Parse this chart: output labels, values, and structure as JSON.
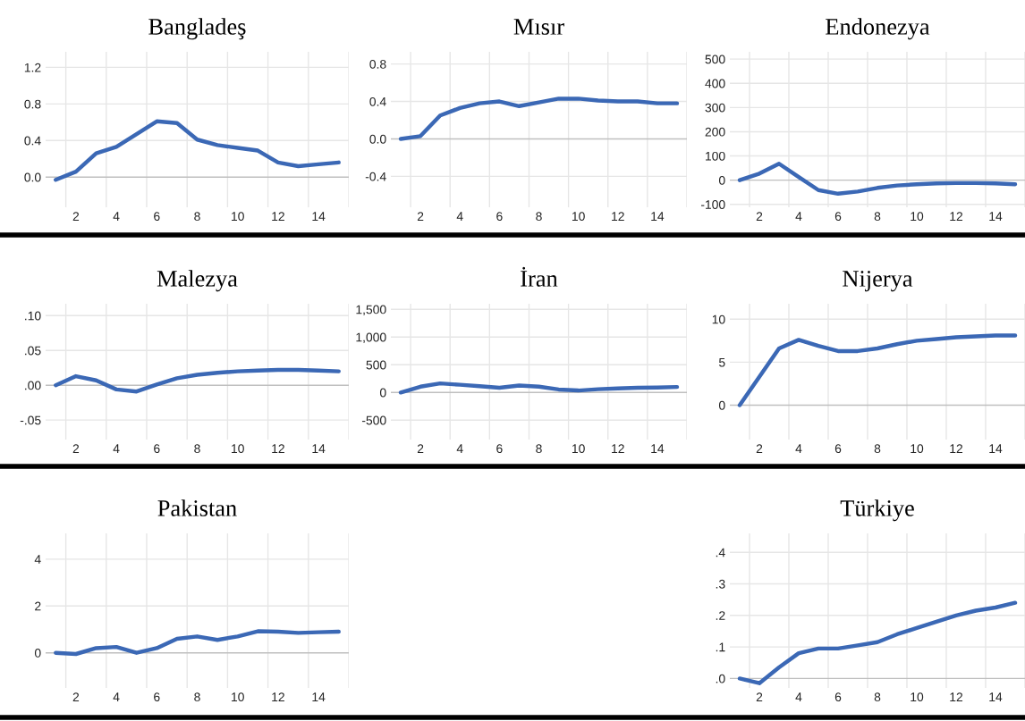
{
  "chart_data": [
    {
      "type": "line",
      "title": "Bangladeş",
      "categories": [
        null,
        "2",
        null,
        "4",
        null,
        "6",
        null,
        "8",
        null,
        "10",
        null,
        "12",
        null,
        "14",
        null
      ],
      "color": "#3b68b5",
      "grid": true,
      "values": [
        -0.03,
        0.06,
        0.26,
        0.33,
        0.47,
        0.61,
        0.59,
        0.41,
        0.35,
        0.32,
        0.29,
        0.16,
        0.12,
        0.14,
        0.16
      ],
      "ylim": [
        -0.33,
        1.37
      ],
      "yticks": [
        {
          "value": 0,
          "label": "0.0"
        },
        0.4,
        0.8,
        1.2
      ]
    },
    {
      "type": "line",
      "title": "Mısır",
      "categories": [
        null,
        "2",
        null,
        "4",
        null,
        "6",
        null,
        "8",
        null,
        "10",
        null,
        "12",
        null,
        "14",
        null
      ],
      "color": "#3b68b5",
      "grid": true,
      "values": [
        0.0,
        0.03,
        0.25,
        0.33,
        0.38,
        0.4,
        0.35,
        0.39,
        0.43,
        0.43,
        0.41,
        0.4,
        0.4,
        0.38,
        0.38
      ],
      "ylim": [
        -0.73,
        0.93
      ],
      "yticks": [
        -0.4,
        {
          "value": 0,
          "label": "0.0"
        },
        0.4,
        0.8
      ]
    },
    {
      "type": "line",
      "title": "Endonezya",
      "categories": [
        null,
        "2",
        null,
        "4",
        null,
        "6",
        null,
        "8",
        null,
        "10",
        null,
        "12",
        null,
        "14",
        null
      ],
      "color": "#3b68b5",
      "grid": true,
      "values": [
        0,
        27,
        68,
        13,
        -41,
        -56,
        -47,
        -32,
        -22,
        -17,
        -13,
        -12,
        -12,
        -13,
        -17
      ],
      "ylim": [
        -112,
        530
      ],
      "yticks": [
        -100,
        0,
        100,
        200,
        300,
        400,
        500
      ]
    },
    {
      "type": "line",
      "title": "Malezya",
      "categories": [
        null,
        "2",
        null,
        "4",
        null,
        "6",
        null,
        "8",
        null,
        "10",
        null,
        "12",
        null,
        "14",
        null
      ],
      "color": "#3b68b5",
      "grid": true,
      "values": [
        0.0,
        0.013,
        0.007,
        -0.006,
        -0.009,
        0.001,
        0.01,
        0.015,
        0.018,
        0.02,
        0.021,
        0.022,
        0.022,
        0.021,
        0.02
      ],
      "ylim": [
        -0.078,
        0.117
      ],
      "yticks": [
        {
          "value": -0.05,
          "label": "-.05"
        },
        {
          "value": 0,
          "label": ".00"
        },
        {
          "value": 0.05,
          "label": ".05"
        },
        {
          "value": 0.1,
          "label": ".10"
        }
      ]
    },
    {
      "type": "line",
      "title": "İran",
      "categories": [
        null,
        "2",
        null,
        "4",
        null,
        "6",
        null,
        "8",
        null,
        "10",
        null,
        "12",
        null,
        "14",
        null
      ],
      "color": "#3b68b5",
      "grid": true,
      "values": [
        0,
        104,
        163,
        139,
        114,
        84,
        124,
        104,
        54,
        35,
        59,
        74,
        84,
        89,
        99
      ],
      "ylim": [
        -850,
        1600
      ],
      "yticks": [
        -500,
        0,
        500,
        {
          "value": 1000,
          "label": "1,000"
        },
        {
          "value": 1500,
          "label": "1,500"
        }
      ]
    },
    {
      "type": "line",
      "title": "Nijerya",
      "categories": [
        null,
        "2",
        null,
        "4",
        null,
        "6",
        null,
        "8",
        null,
        "10",
        null,
        "12",
        null,
        "14",
        null
      ],
      "color": "#3b68b5",
      "grid": true,
      "values": [
        0,
        3.3,
        6.6,
        7.6,
        6.9,
        6.3,
        6.3,
        6.6,
        7.1,
        7.5,
        7.7,
        7.9,
        8.0,
        8.1,
        8.1
      ],
      "ylim": [
        -4.0,
        11.8
      ],
      "yticks": [
        0,
        5,
        10
      ]
    },
    {
      "type": "line",
      "title": "Pakistan",
      "categories": [
        null,
        "2",
        null,
        "4",
        null,
        "6",
        null,
        "8",
        null,
        "10",
        null,
        "12",
        null,
        "14",
        null
      ],
      "color": "#3b68b5",
      "grid": true,
      "values": [
        0,
        -0.05,
        0.2,
        0.25,
        0,
        0.2,
        0.6,
        0.7,
        0.55,
        0.7,
        0.92,
        0.9,
        0.85,
        0.88,
        0.9
      ],
      "ylim": [
        -1.5,
        5.1
      ],
      "yticks": [
        0,
        2,
        4
      ]
    },
    {
      "type": "line",
      "title": "Türkiye",
      "categories": [
        null,
        "2",
        null,
        "4",
        null,
        "6",
        null,
        "8",
        null,
        "10",
        null,
        "12",
        null,
        "14",
        null
      ],
      "color": "#3b68b5",
      "grid": true,
      "values": [
        0,
        -0.015,
        0.035,
        0.08,
        0.095,
        0.095,
        0.105,
        0.115,
        0.14,
        0.16,
        0.18,
        0.2,
        0.215,
        0.225,
        0.24
      ],
      "ylim": [
        -0.03,
        0.46
      ],
      "yticks": [
        {
          "value": 0,
          "label": ".0"
        },
        {
          "value": 0.1,
          "label": ".1"
        },
        {
          "value": 0.2,
          "label": ".2"
        },
        {
          "value": 0.3,
          "label": ".3"
        },
        {
          "value": 0.4,
          "label": ".4"
        }
      ]
    }
  ]
}
